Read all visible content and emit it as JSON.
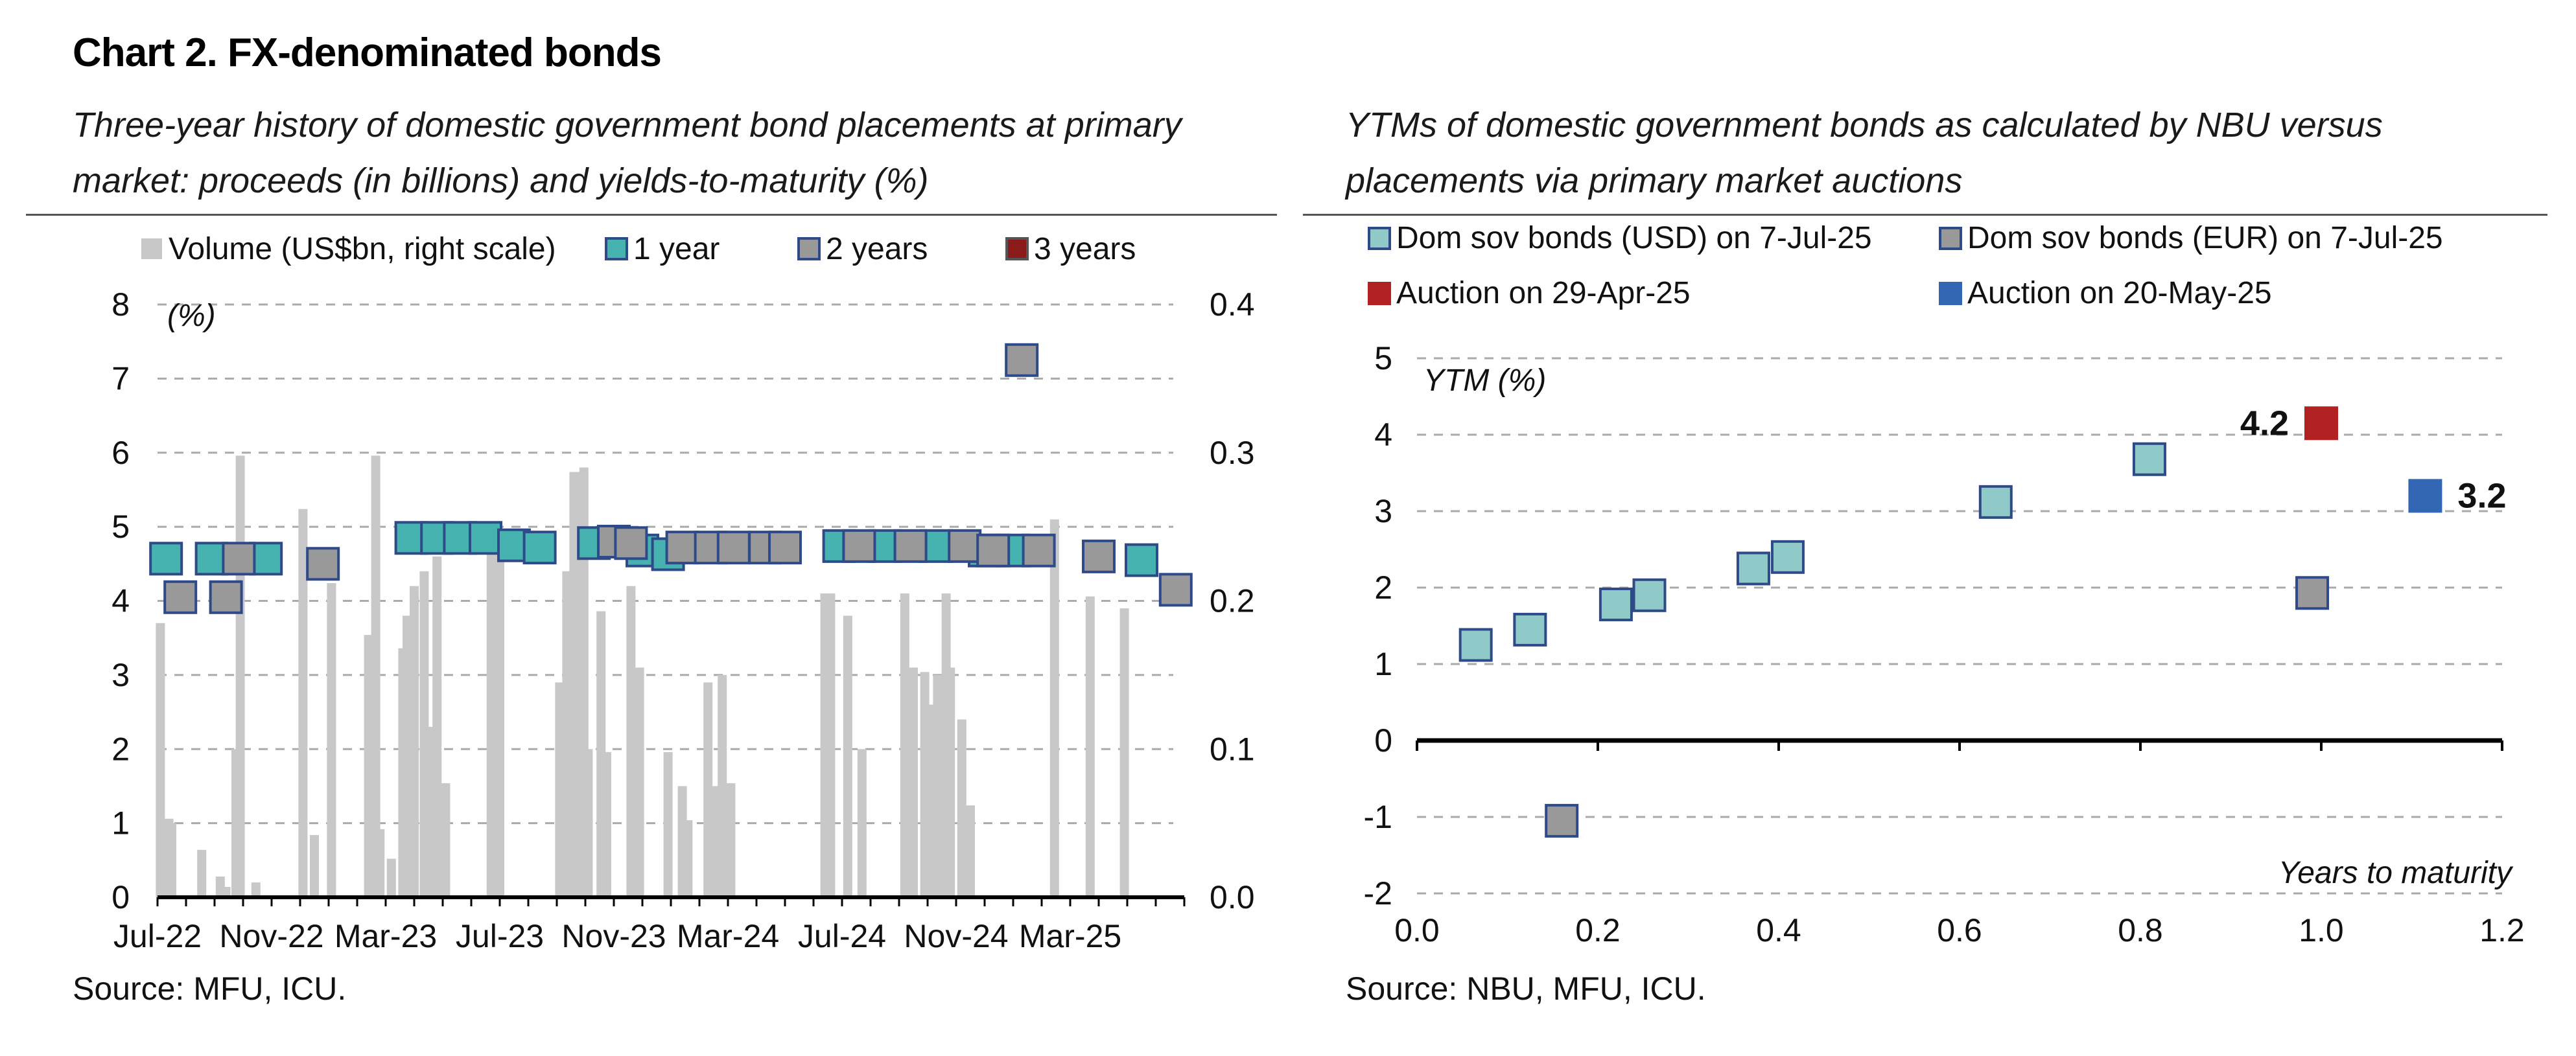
{
  "title": "Chart 2. FX-denominated bonds",
  "left_subtitle": "Three-year history of domestic government bond placements at primary market: proceeds (in billions) and yields-to-maturity (%)",
  "right_subtitle_lead": "YTMs",
  "right_subtitle_rest": " of domestic government bonds as calculated by NBU versus placements via primary market auctions",
  "left_source": "Source: MFU, ICU.",
  "right_source": "Source: NBU, MFU, ICU.",
  "colors": {
    "volume": "#c8c8c8",
    "y1": "#47b3b0",
    "y2": "#999999",
    "y3": "#8b1a1a",
    "usd": "#8fcac9",
    "eur": "#999999",
    "auction_apr": "#b22222",
    "auction_may": "#3366b3",
    "marker_edge": "#2e4a88",
    "grid": "#aaaaaa"
  },
  "chart_data": [
    {
      "type": "bar",
      "name": "left",
      "legend": [
        "Volume (US$bn, right scale)",
        "1 year",
        "2 years",
        "3 years"
      ],
      "y_unit_label": "(%)",
      "ylim_left": [
        0,
        8
      ],
      "yticks_left": [
        "0",
        "1",
        "2",
        "3",
        "4",
        "5",
        "6",
        "7",
        "8"
      ],
      "ylim_right": [
        0,
        0.4
      ],
      "yticks_right": [
        "0.0",
        "0.1",
        "0.2",
        "0.3",
        "0.4"
      ],
      "x_range": [
        0,
        36
      ],
      "xticks": [
        {
          "label": "Jul-22",
          "x": 0
        },
        {
          "label": "Nov-22",
          "x": 4
        },
        {
          "label": "Mar-23",
          "x": 8
        },
        {
          "label": "Jul-23",
          "x": 12
        },
        {
          "label": "Nov-23",
          "x": 16
        },
        {
          "label": "Mar-24",
          "x": 20
        },
        {
          "label": "Jul-24",
          "x": 24
        },
        {
          "label": "Nov-24",
          "x": 28
        },
        {
          "label": "Mar-25",
          "x": 32
        }
      ],
      "volume": [
        [
          0.1,
          0.185
        ],
        [
          0.25,
          0.02
        ],
        [
          0.4,
          0.053
        ],
        [
          0.5,
          0.05
        ],
        [
          1.55,
          0.032
        ],
        [
          2.2,
          0.014
        ],
        [
          2.4,
          0.007
        ],
        [
          2.75,
          0.1
        ],
        [
          2.9,
          0.298
        ],
        [
          3.45,
          0.01
        ],
        [
          5.1,
          0.262
        ],
        [
          5.5,
          0.042
        ],
        [
          6.1,
          0.212
        ],
        [
          7.4,
          0.177
        ],
        [
          7.55,
          0.053
        ],
        [
          7.65,
          0.298
        ],
        [
          7.8,
          0.046
        ],
        [
          8.2,
          0.026
        ],
        [
          8.6,
          0.168
        ],
        [
          8.75,
          0.19
        ],
        [
          9.0,
          0.21
        ],
        [
          9.35,
          0.22
        ],
        [
          9.5,
          0.115
        ],
        [
          9.8,
          0.23
        ],
        [
          10.1,
          0.077
        ],
        [
          11.7,
          0.24
        ],
        [
          12.0,
          0.235
        ],
        [
          14.1,
          0.145
        ],
        [
          14.35,
          0.22
        ],
        [
          14.6,
          0.287
        ],
        [
          14.8,
          0.287
        ],
        [
          14.95,
          0.29
        ],
        [
          15.1,
          0.1
        ],
        [
          15.55,
          0.193
        ],
        [
          15.75,
          0.098
        ],
        [
          16.6,
          0.21
        ],
        [
          16.9,
          0.155
        ],
        [
          17.9,
          0.098
        ],
        [
          18.4,
          0.075
        ],
        [
          18.6,
          0.052
        ],
        [
          19.3,
          0.145
        ],
        [
          19.5,
          0.075
        ],
        [
          19.8,
          0.15
        ],
        [
          20.1,
          0.077
        ],
        [
          23.4,
          0.205
        ],
        [
          23.6,
          0.205
        ],
        [
          24.2,
          0.19
        ],
        [
          24.7,
          0.1
        ],
        [
          26.2,
          0.205
        ],
        [
          26.5,
          0.155
        ],
        [
          26.9,
          0.152
        ],
        [
          27.15,
          0.13
        ],
        [
          27.35,
          0.15
        ],
        [
          27.65,
          0.205
        ],
        [
          27.8,
          0.155
        ],
        [
          28.2,
          0.12
        ],
        [
          28.5,
          0.062
        ],
        [
          31.45,
          0.255
        ],
        [
          32.7,
          0.203
        ],
        [
          33.9,
          0.195
        ]
      ],
      "series": [
        {
          "name": "1 year",
          "points": [
            [
              0.3,
              4.57
            ],
            [
              1.9,
              4.57
            ],
            [
              3.8,
              4.57
            ],
            [
              8.9,
              4.85
            ],
            [
              9.8,
              4.85
            ],
            [
              10.6,
              4.85
            ],
            [
              11.5,
              4.85
            ],
            [
              12.5,
              4.75
            ],
            [
              13.4,
              4.72
            ],
            [
              15.3,
              4.78
            ],
            [
              17.0,
              4.68
            ],
            [
              17.9,
              4.63
            ],
            [
              23.9,
              4.74
            ],
            [
              25.5,
              4.74
            ],
            [
              27.3,
              4.74
            ],
            [
              29.0,
              4.68
            ],
            [
              30.0,
              4.68
            ],
            [
              34.5,
              4.55
            ]
          ]
        },
        {
          "name": "2 years",
          "points": [
            [
              0.8,
              4.05
            ],
            [
              2.4,
              4.05
            ],
            [
              2.85,
              4.57
            ],
            [
              5.8,
              4.5
            ],
            [
              16.0,
              4.8
            ],
            [
              16.6,
              4.78
            ],
            [
              18.4,
              4.72
            ],
            [
              19.4,
              4.72
            ],
            [
              20.2,
              4.72
            ],
            [
              21.3,
              4.72
            ],
            [
              22.0,
              4.72
            ],
            [
              24.6,
              4.74
            ],
            [
              26.4,
              4.74
            ],
            [
              28.3,
              4.74
            ],
            [
              29.3,
              4.68
            ],
            [
              30.3,
              7.25
            ],
            [
              30.9,
              4.68
            ],
            [
              33.0,
              4.6
            ],
            [
              35.7,
              4.15
            ]
          ]
        },
        {
          "name": "3 years",
          "points": []
        }
      ]
    },
    {
      "type": "scatter",
      "name": "right",
      "legend": [
        "Dom sov bonds (USD) on 7-Jul-25",
        "Dom sov bonds (EUR) on 7-Jul-25",
        "Auction on 29-Apr-25",
        "Auction on 20-May-25"
      ],
      "ylabel": "YTM (%)",
      "xlabel": "Years to maturity",
      "xlim": [
        0,
        1.2
      ],
      "ylim": [
        -2,
        5
      ],
      "xticks": [
        "0.0",
        "0.2",
        "0.4",
        "0.6",
        "0.8",
        "1.0",
        "1.2"
      ],
      "yticks": [
        "-2",
        "-1",
        "0",
        "1",
        "2",
        "3",
        "4",
        "5"
      ],
      "series": [
        {
          "name": "Dom sov bonds (USD) on 7-Jul-25",
          "points": [
            [
              0.065,
              1.25
            ],
            [
              0.125,
              1.45
            ],
            [
              0.22,
              1.78
            ],
            [
              0.257,
              1.9
            ],
            [
              0.372,
              2.25
            ],
            [
              0.41,
              2.4
            ],
            [
              0.64,
              3.12
            ],
            [
              0.81,
              3.68
            ]
          ]
        },
        {
          "name": "Dom sov bonds (EUR) on 7-Jul-25",
          "points": [
            [
              0.16,
              -1.05
            ],
            [
              0.99,
              1.93
            ]
          ]
        },
        {
          "name": "Auction on 29-Apr-25",
          "points": [
            [
              1.0,
              4.15
            ]
          ],
          "label": "4.2"
        },
        {
          "name": "Auction on 20-May-25",
          "points": [
            [
              1.115,
              3.2
            ]
          ],
          "label": "3.2"
        }
      ]
    }
  ]
}
